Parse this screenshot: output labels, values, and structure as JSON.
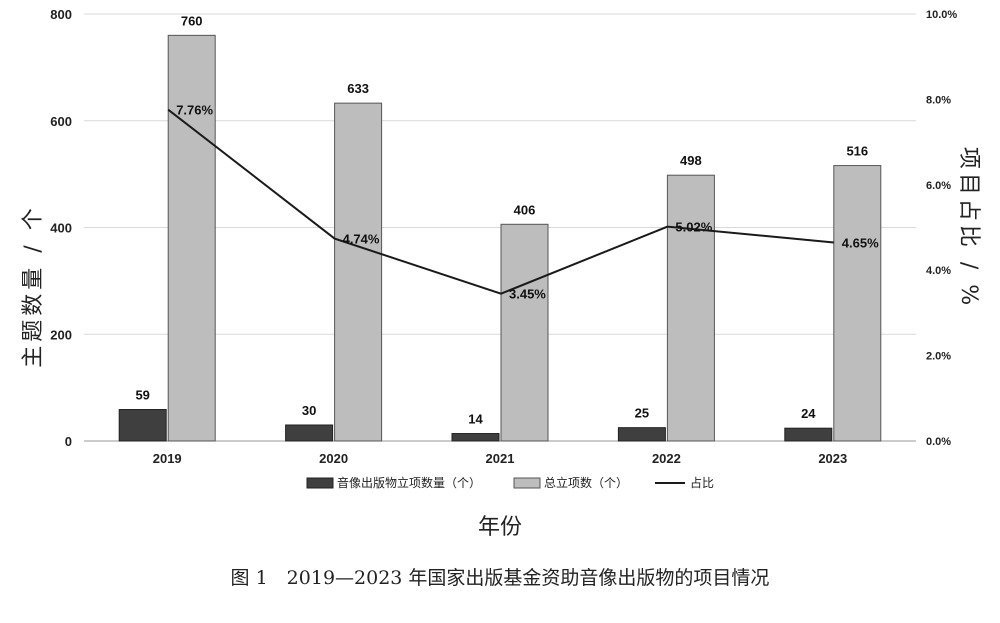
{
  "chart_data": {
    "type": "bar",
    "categories": [
      "2019",
      "2020",
      "2021",
      "2022",
      "2023"
    ],
    "series": [
      {
        "name": "音像出版物立项数量（个）",
        "values": [
          59,
          30,
          14,
          25,
          24
        ],
        "color": "#3f3f3f",
        "axis": "left"
      },
      {
        "name": "总立项数（个）",
        "values": [
          760,
          633,
          406,
          498,
          516
        ],
        "color": "#bdbdbd",
        "axis": "left"
      },
      {
        "name": "占比",
        "values": [
          7.76,
          4.74,
          3.45,
          5.02,
          4.65
        ],
        "type": "line",
        "color": "#1a1a1a",
        "axis": "right"
      }
    ],
    "data_labels": {
      "series_0": [
        "59",
        "30",
        "14",
        "25",
        "24"
      ],
      "series_1": [
        "760",
        "633",
        "406",
        "498",
        "516"
      ],
      "series_2": [
        "7.76%",
        "4.74%",
        "3.45%",
        "5.02%",
        "4.65%"
      ]
    },
    "ylim": [
      0,
      800
    ],
    "y_ticks": [
      "0",
      "200",
      "400",
      "600",
      "800"
    ],
    "y2lim": [
      0,
      10
    ],
    "y2_ticks": [
      "0.0%",
      "2.0%",
      "4.0%",
      "6.0%",
      "8.0%",
      "10.0%"
    ],
    "xlabel": "年份",
    "ylabel": "主题数量 / 个",
    "y2label": "项目占比 / %",
    "legend_position": "bottom",
    "grid": true
  },
  "caption": "图 1　2019—2023 年国家出版基金资助音像出版物的项目情况"
}
